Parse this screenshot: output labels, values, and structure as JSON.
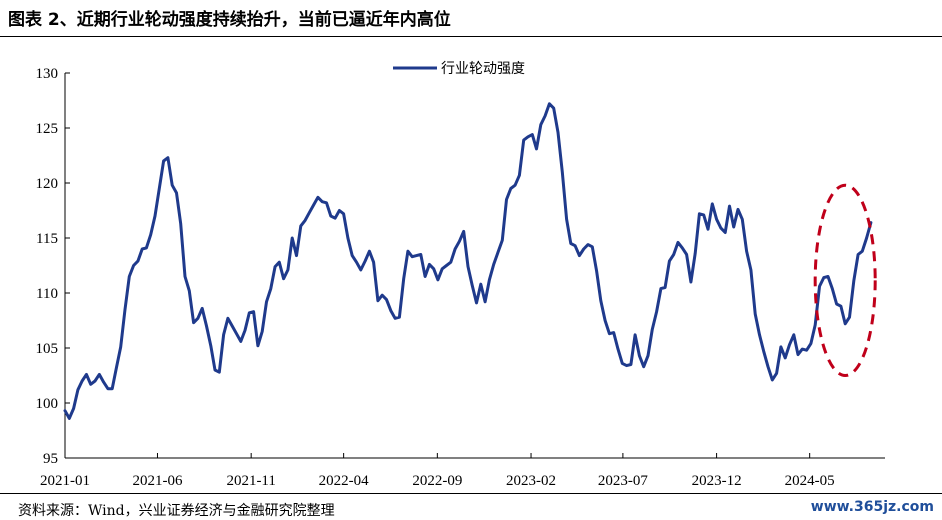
{
  "figure": {
    "title": "图表 2、近期行业轮动强度持续抬升，当前已逼近年内高位",
    "source": "资料来源：Wind，兴业证券经济与金融研究院整理",
    "watermark": "www.365jz.com"
  },
  "chart_data": {
    "type": "line",
    "title": "",
    "xlabel": "",
    "ylabel": "",
    "ylim": [
      95,
      130
    ],
    "yticks": [
      95,
      100,
      105,
      110,
      115,
      120,
      125,
      130
    ],
    "xticks": [
      "2021-01",
      "2021-06",
      "2021-11",
      "2022-04",
      "2022-09",
      "2023-02",
      "2023-07",
      "2023-12",
      "2024-05"
    ],
    "grid": false,
    "legend_position": "top-center",
    "series": [
      {
        "name": "行业轮动强度",
        "color": "#1f3a8c",
        "x": [
          "2021-01-01",
          "2021-01-08",
          "2021-01-15",
          "2021-01-22",
          "2021-01-29",
          "2021-02-05",
          "2021-02-12",
          "2021-02-19",
          "2021-02-26",
          "2021-03-05",
          "2021-03-12",
          "2021-03-19",
          "2021-03-26",
          "2021-04-02",
          "2021-04-09",
          "2021-04-16",
          "2021-04-23",
          "2021-04-30",
          "2021-05-07",
          "2021-05-14",
          "2021-05-21",
          "2021-05-28",
          "2021-06-04",
          "2021-06-11",
          "2021-06-18",
          "2021-06-25",
          "2021-07-02",
          "2021-07-09",
          "2021-07-16",
          "2021-07-23",
          "2021-07-30",
          "2021-08-06",
          "2021-08-13",
          "2021-08-20",
          "2021-08-27",
          "2021-09-03",
          "2021-09-10",
          "2021-09-17",
          "2021-09-24",
          "2021-10-01",
          "2021-10-08",
          "2021-10-15",
          "2021-10-22",
          "2021-10-29",
          "2021-11-05",
          "2021-11-12",
          "2021-11-19",
          "2021-11-26",
          "2021-12-03",
          "2021-12-10",
          "2021-12-17",
          "2021-12-24",
          "2021-12-31",
          "2022-01-07",
          "2022-01-14",
          "2022-01-21",
          "2022-01-28",
          "2022-02-04",
          "2022-02-11",
          "2022-02-18",
          "2022-02-25",
          "2022-03-04",
          "2022-03-11",
          "2022-03-18",
          "2022-03-25",
          "2022-04-01",
          "2022-04-08",
          "2022-04-15",
          "2022-04-22",
          "2022-04-29",
          "2022-05-06",
          "2022-05-13",
          "2022-05-20",
          "2022-05-27",
          "2022-06-03",
          "2022-06-10",
          "2022-06-17",
          "2022-06-24",
          "2022-07-01",
          "2022-07-08",
          "2022-07-15",
          "2022-07-22",
          "2022-07-29",
          "2022-08-05",
          "2022-08-12",
          "2022-08-19",
          "2022-08-26",
          "2022-09-02",
          "2022-09-09",
          "2022-09-16",
          "2022-09-23",
          "2022-09-30",
          "2022-10-07",
          "2022-10-14",
          "2022-10-21",
          "2022-10-28",
          "2022-11-04",
          "2022-11-11",
          "2022-11-18",
          "2022-11-25",
          "2022-12-02",
          "2022-12-09",
          "2022-12-16",
          "2022-12-23",
          "2022-12-30",
          "2023-01-06",
          "2023-01-13",
          "2023-01-20",
          "2023-01-27",
          "2023-02-03",
          "2023-02-10",
          "2023-02-17",
          "2023-02-24",
          "2023-03-03",
          "2023-03-10",
          "2023-03-17",
          "2023-03-24",
          "2023-03-31",
          "2023-04-07",
          "2023-04-14",
          "2023-04-21",
          "2023-04-28",
          "2023-05-05",
          "2023-05-12",
          "2023-05-19",
          "2023-05-26",
          "2023-06-02",
          "2023-06-09",
          "2023-06-16",
          "2023-06-23",
          "2023-06-30",
          "2023-07-07",
          "2023-07-14",
          "2023-07-21",
          "2023-07-28",
          "2023-08-04",
          "2023-08-11",
          "2023-08-18",
          "2023-08-25",
          "2023-09-01",
          "2023-09-08",
          "2023-09-15",
          "2023-09-22",
          "2023-09-29",
          "2023-10-06",
          "2023-10-13",
          "2023-10-20",
          "2023-10-27",
          "2023-11-03",
          "2023-11-10",
          "2023-11-17",
          "2023-11-24",
          "2023-12-01",
          "2023-12-08",
          "2023-12-15",
          "2023-12-22",
          "2023-12-29",
          "2024-01-05",
          "2024-01-12",
          "2024-01-19",
          "2024-01-26",
          "2024-02-02",
          "2024-02-09",
          "2024-02-16",
          "2024-02-23",
          "2024-03-01",
          "2024-03-08",
          "2024-03-15",
          "2024-03-22",
          "2024-03-29",
          "2024-04-05",
          "2024-04-12",
          "2024-04-19",
          "2024-04-26",
          "2024-05-03",
          "2024-05-10",
          "2024-05-17",
          "2024-05-24",
          "2024-05-31",
          "2024-06-07",
          "2024-06-14",
          "2024-06-21",
          "2024-06-28",
          "2024-07-05",
          "2024-07-12",
          "2024-07-19",
          "2024-07-26",
          "2024-08-02",
          "2024-08-09"
        ],
        "values": [
          99.3,
          98.6,
          99.5,
          101.2,
          102.0,
          102.6,
          101.7,
          102.0,
          102.6,
          101.9,
          101.3,
          101.3,
          103.2,
          105.1,
          108.5,
          111.5,
          112.5,
          112.9,
          114.0,
          114.1,
          115.3,
          117.0,
          119.5,
          122.0,
          122.3,
          119.8,
          119.1,
          116.3,
          111.5,
          110.2,
          107.3,
          107.7,
          108.6,
          107.0,
          105.2,
          103.0,
          102.8,
          106.2,
          107.7,
          107.0,
          106.3,
          105.6,
          106.6,
          108.2,
          108.3,
          105.2,
          106.5,
          109.2,
          110.4,
          112.4,
          112.8,
          111.3,
          112.1,
          115.0,
          113.4,
          116.1,
          116.6,
          117.3,
          118.0,
          118.7,
          118.3,
          118.2,
          117.0,
          116.8,
          117.5,
          117.2,
          115.0,
          113.4,
          112.8,
          112.1,
          112.9,
          113.8,
          112.8,
          109.3,
          109.8,
          109.4,
          108.4,
          107.7,
          107.8,
          111.3,
          113.8,
          113.3,
          113.4,
          113.5,
          111.5,
          112.6,
          112.2,
          111.2,
          112.2,
          112.5,
          112.8,
          114.0,
          114.7,
          115.6,
          112.4,
          110.7,
          109.1,
          110.8,
          109.2,
          111.2,
          112.6,
          113.7,
          114.8,
          118.5,
          119.5,
          119.8,
          120.7,
          123.9,
          124.2,
          124.4,
          123.1,
          125.3,
          126.1,
          127.2,
          126.8,
          124.6,
          121.0,
          116.7,
          114.5,
          114.3,
          113.4,
          114.0,
          114.4,
          114.2,
          112.0,
          109.3,
          107.5,
          106.3,
          106.4,
          104.9,
          103.6,
          103.4,
          103.5,
          106.2,
          104.3,
          103.3,
          104.3,
          106.7,
          108.3,
          110.4,
          110.5,
          112.9,
          113.5,
          114.6,
          114.1,
          113.5,
          111.0,
          113.6,
          117.2,
          117.1,
          115.8,
          118.1,
          116.7,
          115.9,
          115.5,
          117.9,
          116.0,
          117.6,
          116.7,
          113.8,
          112.1,
          108.1,
          106.2,
          104.7,
          103.3,
          102.1,
          102.7,
          105.1,
          104.1,
          105.3,
          106.2,
          104.4,
          104.9,
          104.8,
          105.4,
          107.1,
          110.6,
          111.4,
          111.5,
          110.4,
          109.0,
          108.8,
          107.2,
          107.8,
          111.1,
          113.5,
          113.8,
          115.0,
          116.4
        ]
      }
    ],
    "annotations": [
      {
        "type": "dashed-ellipse",
        "color": "#c0001a",
        "start": "2024-05-10",
        "end": "2024-08-16",
        "ymin": 102.5,
        "ymax": 119.8
      }
    ]
  }
}
